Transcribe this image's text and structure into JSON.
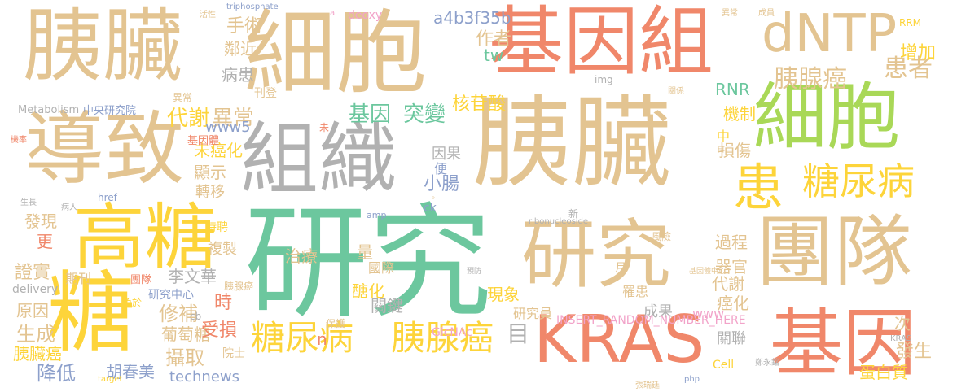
{
  "colors": {
    "tan": "#e3c491",
    "coral": "#f0876a",
    "green": "#6cc79e",
    "gray": "#b1b1b1",
    "yellow": "#fdd43a",
    "lime": "#a9d857",
    "blue": "#8da0cb",
    "pink": "#f2a3c9"
  },
  "words": [
    {
      "text": "胰臟",
      "color": "tan"
    },
    {
      "text": "細胞",
      "color": "tan"
    },
    {
      "text": "基因組",
      "color": "coral"
    },
    {
      "text": "dNTP",
      "color": "tan"
    },
    {
      "text": "導致",
      "color": "tan"
    },
    {
      "text": "組織",
      "color": "gray"
    },
    {
      "text": "胰臟",
      "color": "tan"
    },
    {
      "text": "細胞",
      "color": "lime"
    },
    {
      "text": "高糖",
      "color": "yellow"
    },
    {
      "text": "糖",
      "color": "yellow"
    },
    {
      "text": "研究",
      "color": "green"
    },
    {
      "text": "研究",
      "color": "tan"
    },
    {
      "text": "團隊",
      "color": "tan"
    },
    {
      "text": "KRAS",
      "color": "coral"
    },
    {
      "text": "基因",
      "color": "coral"
    },
    {
      "text": "患",
      "color": "yellow"
    },
    {
      "text": "糖尿病",
      "color": "yellow"
    },
    {
      "text": "胰腺癌",
      "color": "tan"
    },
    {
      "text": "患者",
      "color": "tan"
    },
    {
      "text": "糖尿病",
      "color": "yellow"
    },
    {
      "text": "胰腺癌",
      "color": "yellow"
    },
    {
      "text": "基因",
      "color": "green"
    },
    {
      "text": "突變",
      "color": "green"
    },
    {
      "text": "代謝",
      "color": "yellow"
    },
    {
      "text": "異常",
      "color": "tan"
    },
    {
      "text": "www5",
      "color": "blue"
    },
    {
      "text": "核苷酸",
      "color": "yellow"
    },
    {
      "text": "機制",
      "color": "yellow"
    },
    {
      "text": "RNR",
      "color": "green"
    },
    {
      "text": "損傷",
      "color": "tan"
    },
    {
      "text": "增加",
      "color": "yellow"
    },
    {
      "text": "手術",
      "color": "tan"
    },
    {
      "text": "鄰近",
      "color": "tan"
    },
    {
      "text": "病患",
      "color": "gray"
    },
    {
      "text": "作者",
      "color": "tan"
    },
    {
      "text": "tw",
      "color": "green"
    },
    {
      "text": "a4b3f35b",
      "color": "blue"
    },
    {
      "text": "triphosphate",
      "color": "blue"
    },
    {
      "text": "刊登",
      "color": "tan"
    },
    {
      "text": "未癌化",
      "color": "yellow"
    },
    {
      "text": "顯示",
      "color": "tan"
    },
    {
      "text": "轉移",
      "color": "tan"
    },
    {
      "text": "發現",
      "color": "tan"
    },
    {
      "text": "更",
      "color": "coral"
    },
    {
      "text": "證實",
      "color": "tan"
    },
    {
      "text": "原因",
      "color": "tan"
    },
    {
      "text": "生成",
      "color": "tan"
    },
    {
      "text": "胰臟癌",
      "color": "yellow"
    },
    {
      "text": "降低",
      "color": "blue"
    },
    {
      "text": "胡春美",
      "color": "blue"
    },
    {
      "text": "technews",
      "color": "blue"
    },
    {
      "text": "攝取",
      "color": "tan"
    },
    {
      "text": "院士",
      "color": "tan"
    },
    {
      "text": "葡萄糖",
      "color": "tan"
    },
    {
      "text": "受損",
      "color": "coral"
    },
    {
      "text": "修補",
      "color": "tan"
    },
    {
      "text": "時",
      "color": "coral"
    },
    {
      "text": "李文華",
      "color": "gray"
    },
    {
      "text": "複製",
      "color": "tan"
    },
    {
      "text": "特聘",
      "color": "yellow"
    },
    {
      "text": "治療",
      "color": "tan"
    },
    {
      "text": "量",
      "color": "tan"
    },
    {
      "text": "醣化",
      "color": "yellow"
    },
    {
      "text": "國際",
      "color": "tan"
    },
    {
      "text": "關鍵",
      "color": "gray"
    },
    {
      "text": "現象",
      "color": "yellow"
    },
    {
      "text": "研究員",
      "color": "tan"
    },
    {
      "text": "小腸",
      "color": "blue"
    },
    {
      "text": "因果",
      "color": "gray"
    },
    {
      "text": "便",
      "color": "blue"
    },
    {
      "text": "過程",
      "color": "tan"
    },
    {
      "text": "器官",
      "color": "tan"
    },
    {
      "text": "代謝",
      "color": "tan"
    },
    {
      "text": "癌化",
      "color": "tan"
    },
    {
      "text": "www",
      "color": "pink"
    },
    {
      "text": "成果",
      "color": "gray"
    },
    {
      "text": "關聯",
      "color": "gray"
    },
    {
      "text": "次",
      "color": "tan"
    },
    {
      "text": "發生",
      "color": "tan"
    },
    {
      "text": "蛋白質",
      "color": "yellow"
    },
    {
      "text": "中",
      "color": "yellow"
    },
    {
      "text": "日",
      "color": "tan"
    },
    {
      "text": "月",
      "color": "tan"
    },
    {
      "text": "罹患",
      "color": "tan"
    },
    {
      "text": "基因體",
      "color": "coral"
    },
    {
      "text": "中央研究院",
      "color": "blue"
    },
    {
      "text": "Metabolism",
      "color": "gray"
    },
    {
      "text": "異常",
      "color": "tan"
    },
    {
      "text": "研究中心",
      "color": "blue"
    },
    {
      "text": "delivery",
      "color": "gray"
    },
    {
      "text": "期刊",
      "color": "tan"
    },
    {
      "text": "href",
      "color": "blue"
    },
    {
      "text": "ck",
      "color": "blue"
    },
    {
      "text": "amp",
      "color": "blue"
    },
    {
      "text": "ribonucleoside",
      "color": "gray"
    },
    {
      "text": "INSERT_RANDOM_NUMBER_HERE",
      "color": "pink"
    },
    {
      "text": "Cell",
      "color": "yellow"
    },
    {
      "text": "php",
      "color": "blue"
    },
    {
      "text": "GlcNAc",
      "color": "pink"
    },
    {
      "text": "保護",
      "color": "tan"
    },
    {
      "text": "胰腺癌",
      "color": "tan"
    },
    {
      "text": "cb",
      "color": "gray"
    },
    {
      "text": "n",
      "color": "coral"
    },
    {
      "text": "未",
      "color": "coral"
    },
    {
      "text": "新",
      "color": "gray"
    },
    {
      "text": "風險",
      "color": "tan"
    },
    {
      "text": "團隊",
      "color": "coral"
    },
    {
      "text": "免於",
      "color": "yellow"
    },
    {
      "text": "目",
      "color": "gray"
    },
    {
      "text": "。",
      "color": "tan"
    },
    {
      "text": "deoxy",
      "color": "pink"
    },
    {
      "text": "a",
      "color": "pink"
    },
    {
      "text": "活性",
      "color": "tan"
    },
    {
      "text": "異常",
      "color": "tan"
    },
    {
      "text": "RRM",
      "color": "yellow"
    },
    {
      "text": "成員",
      "color": "tan"
    },
    {
      "text": "關係",
      "color": "tan"
    },
    {
      "text": "img",
      "color": "gray"
    },
    {
      "text": "機率",
      "color": "coral"
    },
    {
      "text": "生長",
      "color": "gray"
    },
    {
      "text": "病人",
      "color": "gray"
    },
    {
      "text": "預防",
      "color": "gray"
    },
    {
      "text": "基因體中心",
      "color": "tan"
    },
    {
      "text": "KRAS",
      "color": "gray"
    },
    {
      "text": "target",
      "color": "yellow"
    },
    {
      "text": "鄭永銘",
      "color": "gray"
    },
    {
      "text": "張瑞廷",
      "color": "tan"
    },
    {
      "text": "酵素",
      "color": "tan"
    }
  ]
}
